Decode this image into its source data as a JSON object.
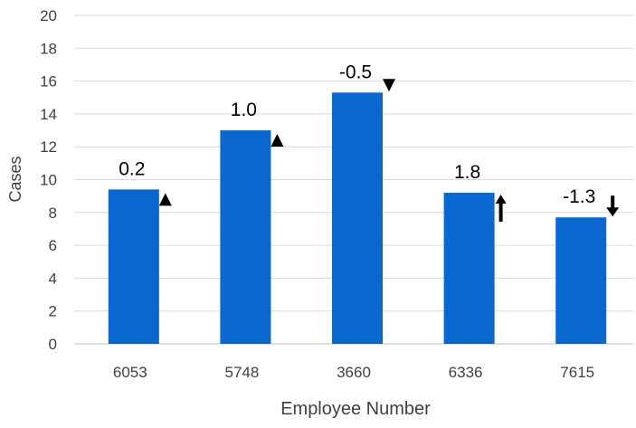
{
  "chart_data": {
    "type": "bar",
    "title": "",
    "xlabel": "Employee Number",
    "ylabel": "Cases",
    "ylim": [
      0,
      20
    ],
    "yticks": [
      0,
      2,
      4,
      6,
      8,
      10,
      12,
      14,
      16,
      18,
      20
    ],
    "grid": true,
    "categories": [
      "6053",
      "5748",
      "3660",
      "6336",
      "7615"
    ],
    "values": [
      9.4,
      13.0,
      15.3,
      9.2,
      7.7
    ],
    "annotations": [
      {
        "label": "0.2",
        "trend": "up-small"
      },
      {
        "label": "1.0",
        "trend": "up-small"
      },
      {
        "label": "-0.5",
        "trend": "down-small"
      },
      {
        "label": "1.8",
        "trend": "up-arrow"
      },
      {
        "label": "-1.3",
        "trend": "down-arrow"
      }
    ],
    "colors": {
      "bar": "#0b67d0",
      "grid": "#d9d9d9",
      "text": "#404040",
      "marker": "#000000"
    }
  }
}
